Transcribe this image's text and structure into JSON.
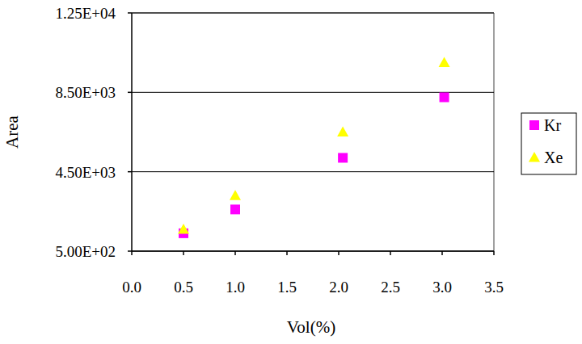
{
  "chart_data": {
    "type": "scatter",
    "x_label": "Vol(%)",
    "y_label": "Area",
    "xlim": [
      0,
      3.5
    ],
    "xticks": [
      {
        "value": 0,
        "label": "0.0"
      },
      0.5,
      {
        "value": 1,
        "label": "1.0"
      },
      1.5,
      {
        "value": 2,
        "label": "2.0"
      },
      2.5,
      {
        "value": 3,
        "label": "3.0"
      },
      3.5
    ],
    "ylim": [
      500,
      12500
    ],
    "yticks": [
      {
        "value": 500,
        "label": "5.00E+02"
      },
      {
        "value": 4500,
        "label": "4.50E+03"
      },
      {
        "value": 8500,
        "label": "8.50E+03"
      },
      {
        "value": 12500,
        "label": "1.25E+04"
      }
    ],
    "grid": true,
    "legend": "right",
    "series": [
      {
        "name": "Kr",
        "color": "#ff00ff",
        "marker": "square",
        "x": [
          0.5,
          1.0,
          2.04,
          3.02
        ],
        "values": [
          1400,
          2600,
          5200,
          8250
        ]
      },
      {
        "name": "Xe",
        "color": "#ffff00",
        "marker": "triangle",
        "x": [
          0.5,
          1.0,
          2.04,
          3.02
        ],
        "values": [
          1600,
          3300,
          6500,
          10000
        ]
      }
    ]
  }
}
